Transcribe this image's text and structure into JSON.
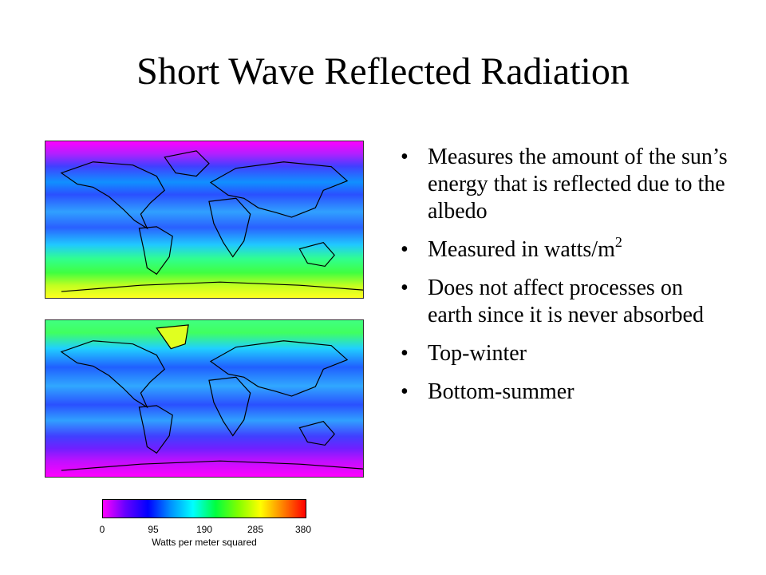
{
  "slide": {
    "title": "Short Wave Reflected Radiation"
  },
  "bullets": [
    {
      "text": "Measures the amount of the sun’s energy that is reflected due to the albedo"
    },
    {
      "text": "Measured in watts/m",
      "superscript": "2"
    },
    {
      "text": "Does not affect processes on earth since it is never absorbed"
    },
    {
      "text": "Top-winter"
    },
    {
      "text": "Bottom-summer"
    }
  ],
  "bullet_glyph": "•",
  "maps": {
    "top": {
      "season": "winter"
    },
    "bottom": {
      "season": "summer"
    }
  },
  "legend": {
    "ticks": [
      "0",
      "95",
      "190",
      "285",
      "380"
    ],
    "caption": "Watts per meter squared",
    "colors": [
      "#ff00ff",
      "#6600ff",
      "#0000ff",
      "#0090ff",
      "#00ffff",
      "#00ff40",
      "#80ff00",
      "#ffff00",
      "#ff8000",
      "#ff0000"
    ]
  },
  "map_colors": {
    "magenta": "#ff00ff",
    "violet": "#8a2bff",
    "blue": "#2040ff",
    "cyan": "#00d8ff",
    "green": "#40ff40",
    "yellow": "#ffff00",
    "coast": "#000000"
  }
}
